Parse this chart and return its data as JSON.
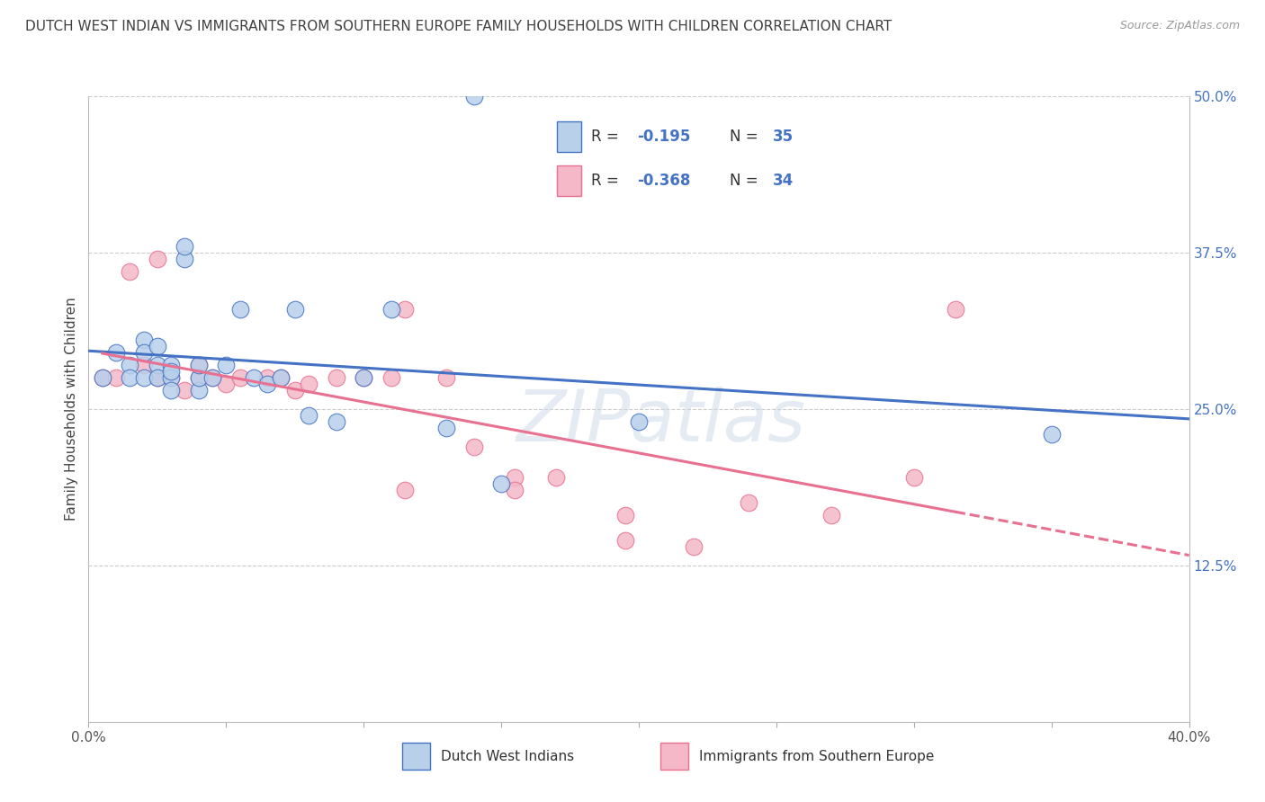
{
  "title": "DUTCH WEST INDIAN VS IMMIGRANTS FROM SOUTHERN EUROPE FAMILY HOUSEHOLDS WITH CHILDREN CORRELATION CHART",
  "source": "Source: ZipAtlas.com",
  "ylabel": "Family Households with Children",
  "x_min": 0.0,
  "x_max": 0.4,
  "y_min": 0.0,
  "y_max": 0.5,
  "y_ticks": [
    0.0,
    0.125,
    0.25,
    0.375,
    0.5
  ],
  "y_tick_labels": [
    "",
    "12.5%",
    "25.0%",
    "37.5%",
    "50.0%"
  ],
  "x_ticks": [
    0.0,
    0.05,
    0.1,
    0.15,
    0.2,
    0.25,
    0.3,
    0.35,
    0.4
  ],
  "x_tick_labels": [
    "0.0%",
    "",
    "",
    "",
    "",
    "",
    "",
    "",
    "40.0%"
  ],
  "blue_R": -0.195,
  "blue_N": 35,
  "pink_R": -0.368,
  "pink_N": 34,
  "blue_fill": "#b8d0ea",
  "pink_fill": "#f4b8c8",
  "blue_edge": "#4472c4",
  "pink_edge": "#e87090",
  "blue_line": "#4472c4",
  "pink_line": "#e87090",
  "label_blue_color": "#4472c4",
  "grid_color": "#cccccc",
  "watermark": "ZIPatlas",
  "legend_label_blue": "Dutch West Indians",
  "legend_label_pink": "Immigrants from Southern Europe",
  "blue_x": [
    0.005,
    0.01,
    0.015,
    0.015,
    0.02,
    0.02,
    0.02,
    0.025,
    0.025,
    0.025,
    0.03,
    0.03,
    0.03,
    0.03,
    0.035,
    0.035,
    0.04,
    0.04,
    0.04,
    0.045,
    0.05,
    0.055,
    0.06,
    0.065,
    0.07,
    0.075,
    0.08,
    0.09,
    0.1,
    0.11,
    0.13,
    0.15,
    0.2,
    0.35,
    0.14
  ],
  "blue_y": [
    0.275,
    0.295,
    0.285,
    0.275,
    0.305,
    0.295,
    0.275,
    0.3,
    0.285,
    0.275,
    0.285,
    0.275,
    0.265,
    0.28,
    0.37,
    0.38,
    0.265,
    0.275,
    0.285,
    0.275,
    0.285,
    0.33,
    0.275,
    0.27,
    0.275,
    0.33,
    0.245,
    0.24,
    0.275,
    0.33,
    0.235,
    0.19,
    0.24,
    0.23,
    0.5
  ],
  "pink_x": [
    0.005,
    0.01,
    0.015,
    0.02,
    0.025,
    0.025,
    0.03,
    0.035,
    0.04,
    0.04,
    0.045,
    0.05,
    0.055,
    0.065,
    0.07,
    0.075,
    0.08,
    0.09,
    0.1,
    0.11,
    0.115,
    0.13,
    0.14,
    0.155,
    0.155,
    0.17,
    0.195,
    0.22,
    0.24,
    0.27,
    0.3,
    0.315,
    0.195,
    0.115
  ],
  "pink_y": [
    0.275,
    0.275,
    0.36,
    0.285,
    0.275,
    0.37,
    0.275,
    0.265,
    0.275,
    0.285,
    0.275,
    0.27,
    0.275,
    0.275,
    0.275,
    0.265,
    0.27,
    0.275,
    0.275,
    0.275,
    0.33,
    0.275,
    0.22,
    0.195,
    0.185,
    0.195,
    0.165,
    0.14,
    0.175,
    0.165,
    0.195,
    0.33,
    0.145,
    0.185
  ],
  "figsize": [
    14.06,
    8.92
  ],
  "dpi": 100
}
